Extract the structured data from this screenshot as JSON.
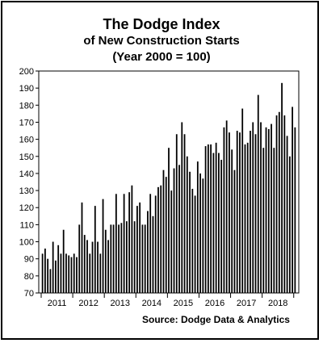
{
  "chart_data": {
    "type": "bar",
    "title": "The Dodge Index",
    "subtitle_lines": [
      "of New Construction Starts",
      "(Year 2000 = 100)"
    ],
    "source": "Source:  Dodge Data & Analytics",
    "xlabel": "",
    "ylabel": "",
    "ylim": [
      70,
      200
    ],
    "yticks": [
      70,
      80,
      90,
      100,
      110,
      120,
      130,
      140,
      150,
      160,
      170,
      180,
      190,
      200
    ],
    "year_labels": [
      "2011",
      "2012",
      "2013",
      "2014",
      "2015",
      "2016",
      "2017",
      "2018"
    ],
    "grid": false,
    "legend": "none",
    "bar_color": "#000000",
    "series": [
      {
        "values": [
          93,
          96,
          90,
          84,
          100,
          89,
          98,
          93,
          107,
          93,
          92,
          91,
          93,
          91,
          110,
          123,
          104,
          101,
          93,
          100,
          121,
          100,
          93,
          125,
          107,
          101,
          110,
          110,
          128,
          110,
          111,
          128,
          112,
          129,
          133,
          112,
          121,
          123,
          110,
          110,
          118,
          128,
          115,
          127,
          132,
          133,
          142,
          138,
          155,
          130,
          143,
          163,
          145,
          170,
          163,
          150,
          141,
          131,
          127,
          147,
          140,
          137,
          156,
          157,
          157,
          152,
          158,
          152,
          148,
          167,
          171,
          164,
          154,
          142,
          165,
          164,
          178,
          157,
          158,
          165,
          170,
          163,
          186,
          170,
          155,
          167,
          166,
          169,
          155,
          174,
          176,
          193,
          174,
          162,
          150,
          179,
          167
        ]
      }
    ]
  }
}
